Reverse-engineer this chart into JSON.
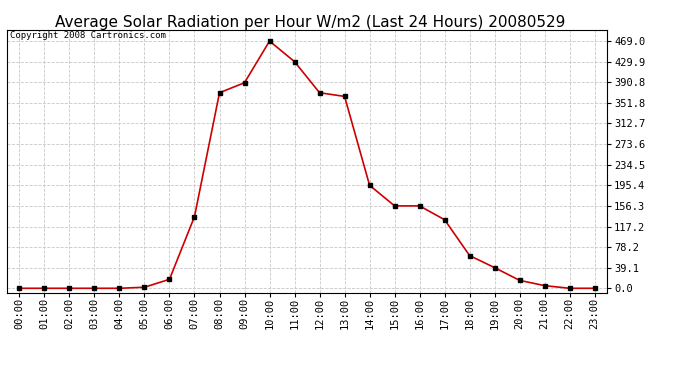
{
  "title": "Average Solar Radiation per Hour W/m2 (Last 24 Hours) 20080529",
  "copyright": "Copyright 2008 Cartronics.com",
  "hours": [
    "00:00",
    "01:00",
    "02:00",
    "03:00",
    "04:00",
    "05:00",
    "06:00",
    "07:00",
    "08:00",
    "09:00",
    "10:00",
    "11:00",
    "12:00",
    "13:00",
    "14:00",
    "15:00",
    "16:00",
    "17:00",
    "18:00",
    "19:00",
    "20:00",
    "21:00",
    "22:00",
    "23:00"
  ],
  "values": [
    0.0,
    0.0,
    0.0,
    0.0,
    0.0,
    2.0,
    17.0,
    136.0,
    371.0,
    390.0,
    469.0,
    429.9,
    371.0,
    364.0,
    195.4,
    156.3,
    156.3,
    130.0,
    62.0,
    39.1,
    15.0,
    5.0,
    0.0,
    0.0
  ],
  "yticks": [
    0.0,
    39.1,
    78.2,
    117.2,
    156.3,
    195.4,
    234.5,
    273.6,
    312.7,
    351.8,
    390.8,
    429.9,
    469.0
  ],
  "line_color": "#cc0000",
  "marker_color": "#000000",
  "bg_color": "#ffffff",
  "grid_color": "#c8c8c8",
  "title_fontsize": 11,
  "copyright_fontsize": 6.5,
  "tick_fontsize": 7.5,
  "ymax": 490.0,
  "ymin": -8.0
}
